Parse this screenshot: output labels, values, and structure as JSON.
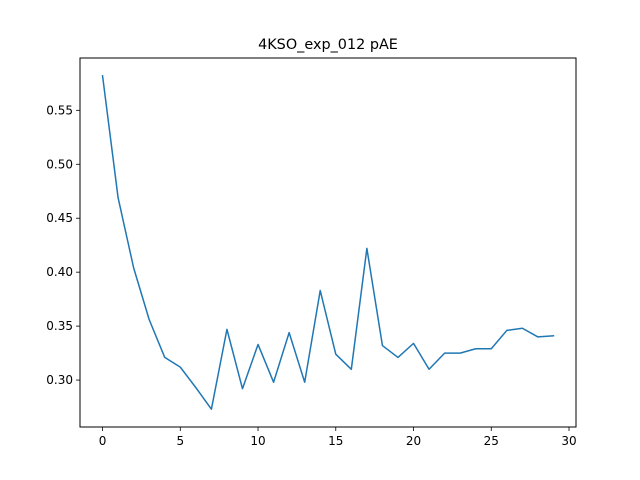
{
  "chart_data": {
    "type": "line",
    "title": "4KSO_exp_012 pAE",
    "xlabel": "",
    "ylabel": "",
    "xlim": [
      -1.45,
      30.45
    ],
    "ylim": [
      0.2565,
      0.5985
    ],
    "grid": false,
    "x_ticks": [
      0,
      5,
      10,
      15,
      20,
      25,
      30
    ],
    "x_tick_labels": [
      "0",
      "5",
      "10",
      "15",
      "20",
      "25",
      "30"
    ],
    "y_ticks": [
      0.3,
      0.35,
      0.4,
      0.45,
      0.5,
      0.55
    ],
    "y_tick_labels": [
      "0.30",
      "0.35",
      "0.40",
      "0.45",
      "0.50",
      "0.55"
    ],
    "series": [
      {
        "color": "#1f77b4",
        "x": [
          0,
          1,
          2,
          3,
          4,
          5,
          6,
          7,
          8,
          9,
          10,
          11,
          12,
          13,
          14,
          15,
          16,
          17,
          18,
          19,
          20,
          21,
          22,
          23,
          24,
          25,
          26,
          27,
          28,
          29
        ],
        "y": [
          0.582,
          0.469,
          0.404,
          0.356,
          0.321,
          0.312,
          0.293,
          0.273,
          0.347,
          0.292,
          0.333,
          0.298,
          0.344,
          0.298,
          0.383,
          0.324,
          0.31,
          0.422,
          0.332,
          0.321,
          0.334,
          0.31,
          0.325,
          0.325,
          0.329,
          0.329,
          0.346,
          0.348,
          0.34,
          0.341
        ]
      }
    ]
  }
}
